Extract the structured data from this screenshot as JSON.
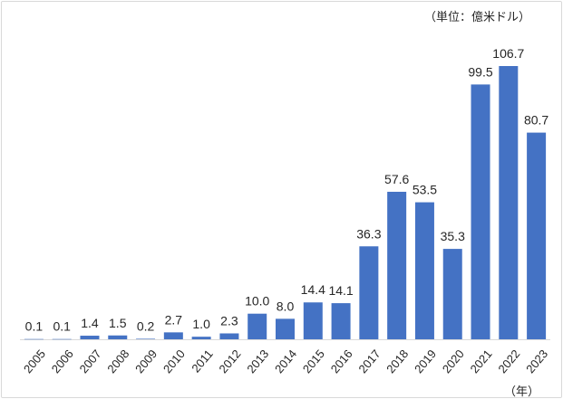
{
  "chart_data": {
    "type": "bar",
    "unit_label": "（単位：億米ドル）",
    "x_unit_label": "（年）",
    "categories": [
      "2005",
      "2006",
      "2007",
      "2008",
      "2009",
      "2010",
      "2011",
      "2012",
      "2013",
      "2014",
      "2015",
      "2016",
      "2017",
      "2018",
      "2019",
      "2020",
      "2021",
      "2022",
      "2023"
    ],
    "values": [
      0.1,
      0.1,
      1.4,
      1.5,
      0.2,
      2.7,
      1.0,
      2.3,
      10.0,
      8.0,
      14.4,
      14.1,
      36.3,
      57.6,
      53.5,
      35.3,
      99.5,
      106.7,
      80.7
    ],
    "value_labels": [
      "0.1",
      "0.1",
      "1.4",
      "1.5",
      "0.2",
      "2.7",
      "1.0",
      "2.3",
      "10.0",
      "8.0",
      "14.4",
      "14.1",
      "36.3",
      "57.6",
      "53.5",
      "35.3",
      "99.5",
      "106.7",
      "80.7"
    ],
    "ylim": [
      0,
      112
    ],
    "bar_color": "#4472c4",
    "grid": false,
    "legend": "none"
  }
}
